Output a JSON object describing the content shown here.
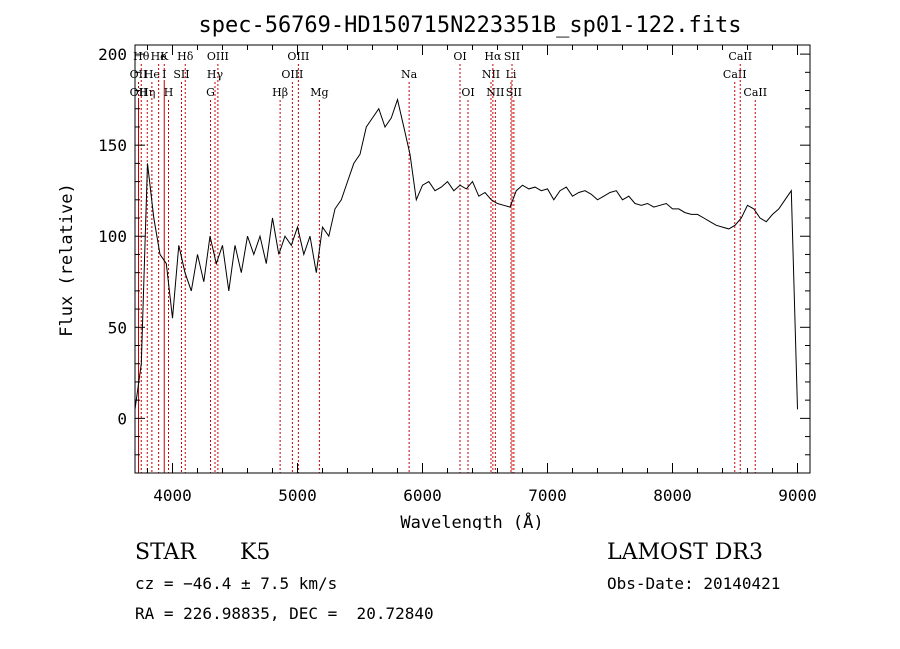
{
  "chart_data": {
    "type": "line",
    "title": "spec-56769-HD150715N223351B_sp01-122.fits",
    "xlabel": "Wavelength (Å)",
    "ylabel": "Flux (relative)",
    "xlim": [
      3700,
      9100
    ],
    "ylim": [
      -30,
      205
    ],
    "x_ticks": [
      4000,
      5000,
      6000,
      7000,
      8000,
      9000
    ],
    "y_ticks": [
      0,
      50,
      100,
      150,
      200
    ],
    "grid": false,
    "line_color": "#000000",
    "marker_color": "#cc0000",
    "series": [
      {
        "x": [
          3700,
          3750,
          3800,
          3850,
          3900,
          3950,
          4000,
          4050,
          4100,
          4150,
          4200,
          4250,
          4300,
          4350,
          4400,
          4450,
          4500,
          4550,
          4600,
          4650,
          4700,
          4750,
          4800,
          4850,
          4900,
          4950,
          5000,
          5050,
          5100,
          5150,
          5200,
          5250,
          5300,
          5350,
          5400,
          5450,
          5500,
          5550,
          5600,
          5650,
          5700,
          5750,
          5800,
          5850,
          5900,
          5950,
          6000,
          6050,
          6100,
          6150,
          6200,
          6250,
          6300,
          6350,
          6400,
          6450,
          6500,
          6550,
          6600,
          6650,
          6700,
          6750,
          6800,
          6850,
          6900,
          6950,
          7000,
          7050,
          7100,
          7150,
          7200,
          7250,
          7300,
          7350,
          7400,
          7450,
          7500,
          7550,
          7600,
          7650,
          7700,
          7750,
          7800,
          7850,
          7900,
          7950,
          8000,
          8050,
          8100,
          8150,
          8200,
          8250,
          8300,
          8350,
          8400,
          8450,
          8500,
          8550,
          8600,
          8650,
          8700,
          8750,
          8800,
          8850,
          8900,
          8950,
          9000
        ],
        "y": [
          5,
          30,
          140,
          110,
          90,
          85,
          55,
          95,
          80,
          70,
          90,
          75,
          100,
          85,
          95,
          70,
          95,
          80,
          100,
          90,
          100,
          85,
          110,
          90,
          100,
          95,
          105,
          90,
          100,
          80,
          105,
          100,
          115,
          120,
          130,
          140,
          145,
          160,
          165,
          170,
          160,
          165,
          175,
          160,
          145,
          120,
          128,
          130,
          125,
          127,
          130,
          125,
          128,
          126,
          130,
          122,
          124,
          120,
          118,
          117,
          116,
          125,
          128,
          126,
          127,
          125,
          126,
          120,
          125,
          127,
          122,
          124,
          125,
          123,
          120,
          122,
          124,
          125,
          120,
          122,
          118,
          117,
          118,
          116,
          117,
          118,
          115,
          115,
          113,
          112,
          112,
          110,
          108,
          106,
          105,
          104,
          106,
          110,
          117,
          115,
          110,
          108,
          112,
          115,
          120,
          125,
          5
        ]
      }
    ],
    "lines": [
      {
        "wl": 3750,
        "label": "Hθ",
        "row": 1
      },
      {
        "wl": 3728,
        "label": "OII",
        "row": 2
      },
      {
        "wl": 3728,
        "label": "OII",
        "row": 3
      },
      {
        "wl": 3798,
        "label": "Hη",
        "row": 3
      },
      {
        "wl": 3835,
        "label": "He",
        "row": 2
      },
      {
        "wl": 3889,
        "label": "He",
        "row": 1
      },
      {
        "wl": 3934,
        "label": "K",
        "row": 1
      },
      {
        "wl": 3934,
        "label": "I",
        "row": 2
      },
      {
        "wl": 3968,
        "label": "H",
        "row": 3
      },
      {
        "wl": 4072,
        "label": "SII",
        "row": 2
      },
      {
        "wl": 4102,
        "label": "Hδ",
        "row": 1
      },
      {
        "wl": 4304,
        "label": "G",
        "row": 3
      },
      {
        "wl": 4340,
        "label": "Hγ",
        "row": 2
      },
      {
        "wl": 4363,
        "label": "OIII",
        "row": 1
      },
      {
        "wl": 4861,
        "label": "Hβ",
        "row": 3
      },
      {
        "wl": 4959,
        "label": "OIII",
        "row": 2
      },
      {
        "wl": 5007,
        "label": "OIII",
        "row": 1
      },
      {
        "wl": 5175,
        "label": "Mg",
        "row": 3
      },
      {
        "wl": 5893,
        "label": "Na",
        "row": 2
      },
      {
        "wl": 6300,
        "label": "OI",
        "row": 1
      },
      {
        "wl": 6364,
        "label": "OI",
        "row": 3
      },
      {
        "wl": 6548,
        "label": "NII",
        "row": 2
      },
      {
        "wl": 6563,
        "label": "Hα",
        "row": 1
      },
      {
        "wl": 6583,
        "label": "NII",
        "row": 3
      },
      {
        "wl": 6708,
        "label": "Li",
        "row": 2
      },
      {
        "wl": 6716,
        "label": "SII",
        "row": 1
      },
      {
        "wl": 6731,
        "label": "SII",
        "row": 3
      },
      {
        "wl": 8498,
        "label": "CaII",
        "row": 2
      },
      {
        "wl": 8542,
        "label": "CaII",
        "row": 1
      },
      {
        "wl": 8662,
        "label": "CaII",
        "row": 3
      }
    ]
  },
  "info": {
    "class": "STAR",
    "subclass": "K5",
    "survey": "LAMOST DR3",
    "cz": "cz = −46.4 ± 7.5 km/s",
    "obs_date": "Obs-Date: 20140421",
    "coords": "RA = 226.98835, DEC =  20.72840"
  }
}
